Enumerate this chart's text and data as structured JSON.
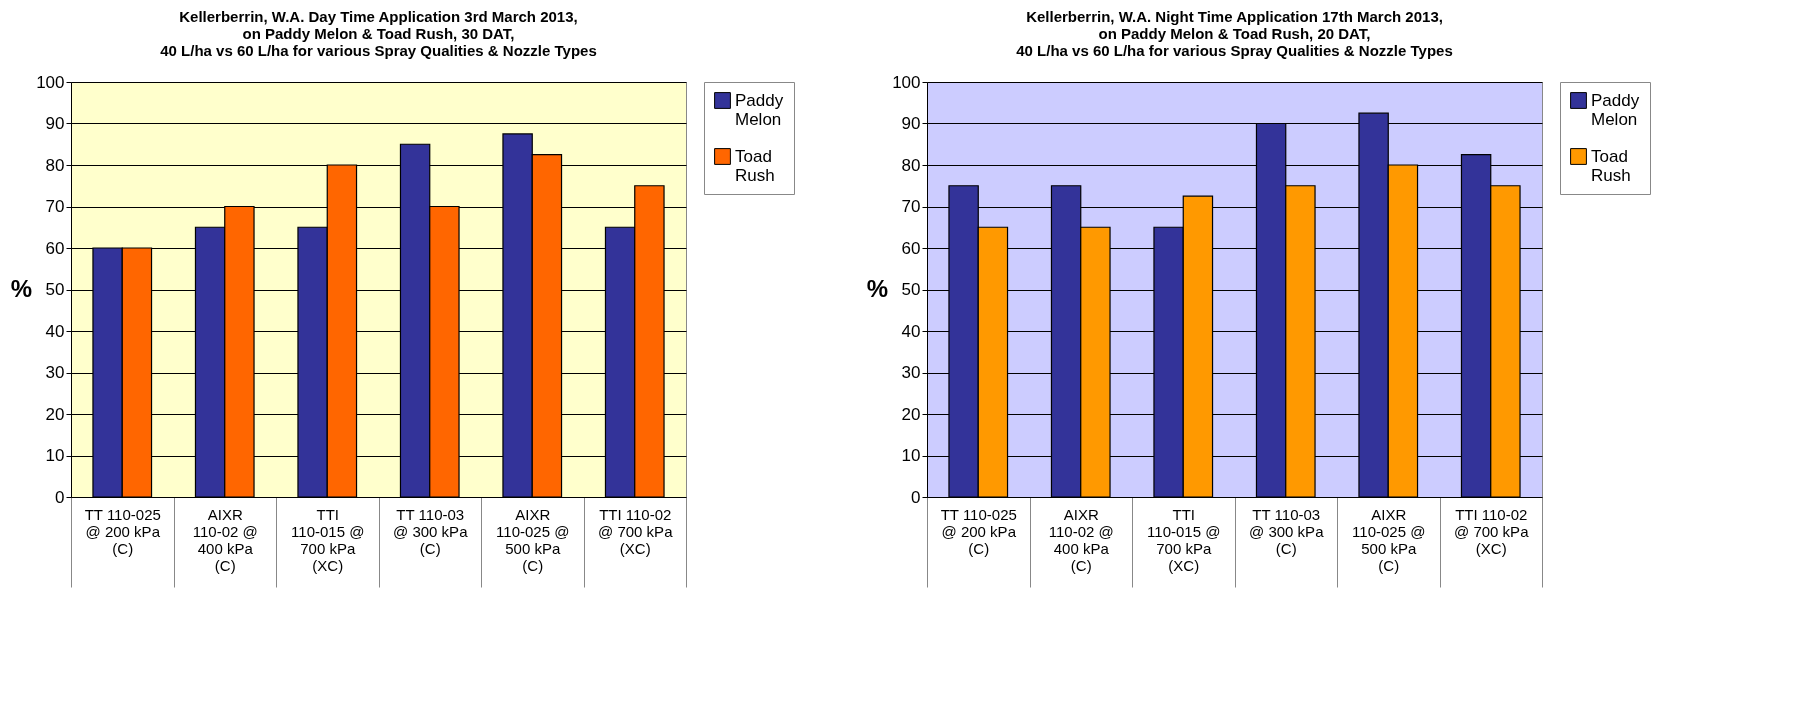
{
  "chart_data": [
    {
      "type": "bar",
      "title": "Kellerberrin, W.A. Day Time Application 3rd March 2013,\non Paddy Melon & Toad Rush, 30 DAT,\n40 L/ha vs 60 L/ha for various Spray Qualities & Nozzle Types",
      "ylabel": "%",
      "categories": [
        "TT 110-025 @ 200 kPa (C)",
        "AIXR 110-02 @ 400 kPa (C)",
        "TTI 110-015 @ 700 kPa (XC)",
        "TT 110-03 @ 300 kPa (C)",
        "AIXR 110-025 @ 500 kPa (C)",
        "TTI 110-02 @ 700 kPa (XC)"
      ],
      "series": [
        {
          "name": "Paddy Melon",
          "color": "#333399",
          "values": [
            60,
            65,
            65,
            85,
            87.5,
            65
          ]
        },
        {
          "name": "Toad Rush",
          "color": "#ff6600",
          "values": [
            60,
            70,
            80,
            70,
            82.5,
            75
          ]
        }
      ],
      "ylim": [
        0,
        100
      ],
      "yticks": [
        0,
        10,
        20,
        30,
        40,
        50,
        60,
        70,
        80,
        90,
        100
      ],
      "grid": "y",
      "legend": "right"
    },
    {
      "type": "bar",
      "title": "Kellerberrin, W.A. Night Time Application 17th March 2013,\non Paddy Melon & Toad Rush, 20 DAT,\n40 L/ha vs 60 L/ha for various Spray Qualities & Nozzle Types",
      "ylabel": "%",
      "categories": [
        "TT 110-025 @ 200 kPa (C)",
        "AIXR 110-02 @ 400 kPa (C)",
        "TTI 110-015 @ 700 kPa (XC)",
        "TT 110-03 @ 300 kPa (C)",
        "AIXR 110-025 @ 500 kPa (C)",
        "TTI 110-02 @ 700 kPa (XC)"
      ],
      "series": [
        {
          "name": "Paddy Melon",
          "color": "#333399",
          "values": [
            75,
            75,
            65,
            90,
            92.5,
            82.5
          ]
        },
        {
          "name": "Toad Rush",
          "color": "#ff9900",
          "values": [
            65,
            65,
            72.5,
            75,
            80,
            75
          ]
        }
      ],
      "ylim": [
        0,
        100
      ],
      "yticks": [
        0,
        10,
        20,
        30,
        40,
        50,
        60,
        70,
        80,
        90,
        100
      ],
      "grid": "y",
      "legend": "right"
    }
  ]
}
